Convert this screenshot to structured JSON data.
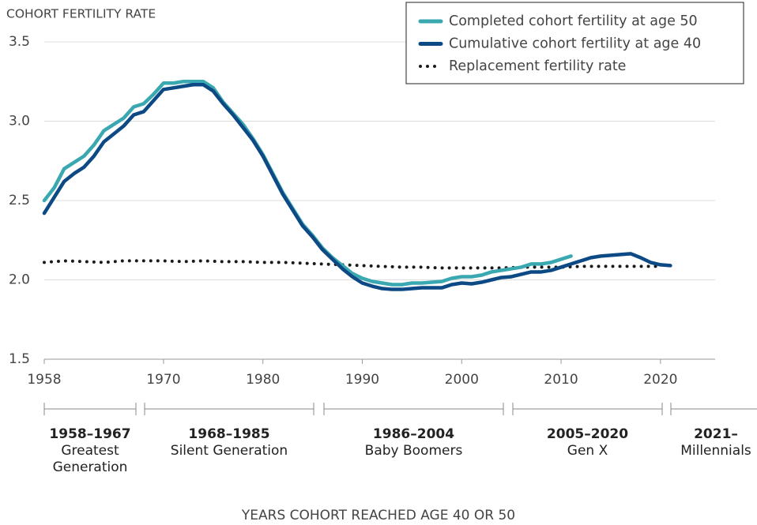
{
  "chart_data": {
    "type": "line",
    "title": "COHORT FERTILITY RATE",
    "x_label": "YEARS COHORT REACHED AGE 40 OR 50",
    "xlim": [
      1958,
      2025.5
    ],
    "xticks": [
      1958,
      1970,
      1980,
      1990,
      2000,
      2010,
      2020
    ],
    "ylim": [
      1.5,
      3.5
    ],
    "yticks": [
      {
        "value": 1.5,
        "label": "1.5"
      },
      {
        "value": 2,
        "label": "2.0"
      },
      {
        "value": 2.5,
        "label": "2.5"
      },
      {
        "value": 3,
        "label": "3.0"
      },
      {
        "value": 3.5,
        "label": "3.5"
      }
    ],
    "grid": true,
    "legend": "top-right",
    "series": [
      {
        "name": "Completed cohort fertility at age 50",
        "color": "#3aa8b0",
        "style": "solid",
        "x": [
          1958,
          1959,
          1960,
          1961,
          1962,
          1963,
          1964,
          1965,
          1966,
          1967,
          1968,
          1969,
          1970,
          1971,
          1972,
          1973,
          1974,
          1975,
          1976,
          1977,
          1978,
          1979,
          1980,
          1981,
          1982,
          1983,
          1984,
          1985,
          1986,
          1987,
          1988,
          1989,
          1990,
          1991,
          1992,
          1993,
          1994,
          1995,
          1996,
          1997,
          1998,
          1999,
          2000,
          2001,
          2002,
          2003,
          2004,
          2005,
          2006,
          2007,
          2008,
          2009,
          2010,
          2011
        ],
        "values": [
          2.5,
          2.58,
          2.7,
          2.74,
          2.78,
          2.85,
          2.94,
          2.98,
          3.02,
          3.09,
          3.11,
          3.17,
          3.24,
          3.24,
          3.25,
          3.25,
          3.25,
          3.21,
          3.12,
          3.05,
          2.98,
          2.89,
          2.79,
          2.67,
          2.55,
          2.45,
          2.35,
          2.28,
          2.2,
          2.14,
          2.09,
          2.04,
          2.01,
          1.99,
          1.98,
          1.97,
          1.97,
          1.98,
          1.98,
          1.985,
          1.99,
          2.01,
          2.02,
          2.02,
          2.03,
          2.05,
          2.06,
          2.07,
          2.08,
          2.1,
          2.1,
          2.11,
          2.13,
          2.15
        ]
      },
      {
        "name": "Cumulative cohort fertility at age 40",
        "color": "#0d4a85",
        "style": "solid",
        "x": [
          1958,
          1959,
          1960,
          1961,
          1962,
          1963,
          1964,
          1965,
          1966,
          1967,
          1968,
          1969,
          1970,
          1971,
          1972,
          1973,
          1974,
          1975,
          1976,
          1977,
          1978,
          1979,
          1980,
          1981,
          1982,
          1983,
          1984,
          1985,
          1986,
          1987,
          1988,
          1989,
          1990,
          1991,
          1992,
          1993,
          1994,
          1995,
          1996,
          1997,
          1998,
          1999,
          2000,
          2001,
          2002,
          2003,
          2004,
          2005,
          2006,
          2007,
          2008,
          2009,
          2010,
          2011,
          2012,
          2013,
          2014,
          2015,
          2016,
          2017,
          2018,
          2019,
          2020,
          2021
        ],
        "values": [
          2.42,
          2.52,
          2.62,
          2.67,
          2.71,
          2.78,
          2.87,
          2.92,
          2.97,
          3.04,
          3.06,
          3.13,
          3.2,
          3.21,
          3.22,
          3.23,
          3.23,
          3.19,
          3.11,
          3.04,
          2.96,
          2.88,
          2.78,
          2.66,
          2.54,
          2.44,
          2.34,
          2.27,
          2.19,
          2.13,
          2.07,
          2.02,
          1.98,
          1.96,
          1.945,
          1.94,
          1.94,
          1.945,
          1.95,
          1.95,
          1.95,
          1.97,
          1.98,
          1.975,
          1.985,
          2.0,
          2.015,
          2.02,
          2.035,
          2.05,
          2.05,
          2.06,
          2.08,
          2.1,
          2.12,
          2.14,
          2.15,
          2.155,
          2.16,
          2.165,
          2.14,
          2.11,
          2.095,
          2.09
        ]
      },
      {
        "name": "Replacement fertility rate",
        "color": "#1a1a1a",
        "style": "dotted",
        "x": [
          1958,
          1960,
          1962,
          1964,
          1966,
          1968,
          1970,
          1972,
          1974,
          1976,
          1978,
          1980,
          1982,
          1984,
          1986,
          1988,
          1990,
          1992,
          1994,
          1996,
          1998,
          2000,
          2002,
          2004,
          2006,
          2008,
          2010,
          2012,
          2014,
          2016,
          2018,
          2020
        ],
        "values": [
          2.11,
          2.12,
          2.115,
          2.11,
          2.12,
          2.12,
          2.12,
          2.115,
          2.12,
          2.115,
          2.115,
          2.11,
          2.11,
          2.105,
          2.1,
          2.095,
          2.09,
          2.085,
          2.08,
          2.08,
          2.075,
          2.075,
          2.075,
          2.075,
          2.08,
          2.08,
          2.08,
          2.085,
          2.085,
          2.085,
          2.085,
          2.085
        ]
      }
    ],
    "generations": [
      {
        "range": "1958–1967",
        "name": "Greatest Generation"
      },
      {
        "range": "1968–1985",
        "name": "Silent Generation"
      },
      {
        "range": "1986–2004",
        "name": "Baby Boomers"
      },
      {
        "range": "2005–2020",
        "name": "Gen X"
      },
      {
        "range": "2021–",
        "name": "Millennials"
      }
    ]
  }
}
